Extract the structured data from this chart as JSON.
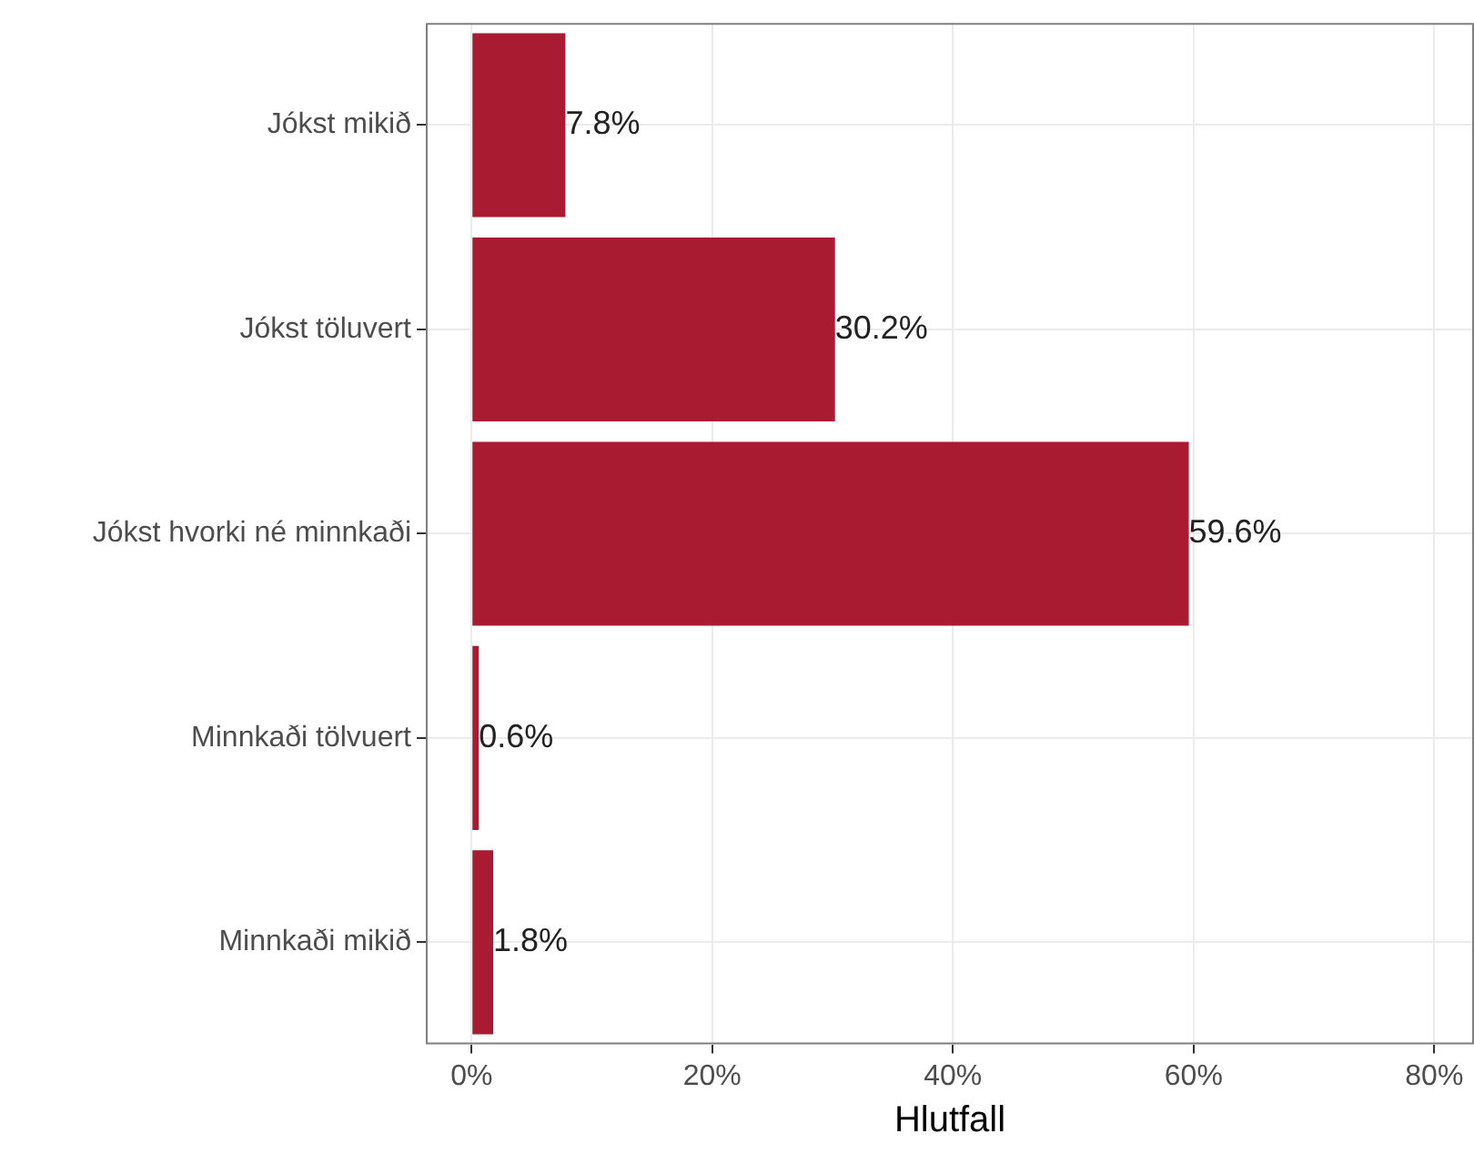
{
  "chart_data": {
    "type": "bar",
    "orientation": "horizontal",
    "xlabel": "Hlutfall",
    "categories": [
      "Jókst mikið",
      "Jókst töluvert",
      "Jókst hvorki né minnkaði",
      "Minnkaði tölvuert",
      "Minnkaði mikið"
    ],
    "values": [
      7.8,
      30.2,
      59.6,
      0.6,
      1.8
    ],
    "value_labels": [
      "7.8%",
      "30.2%",
      "59.6%",
      "0.6%",
      "1.8%"
    ],
    "color": "#a91b30",
    "xlim": [
      -3.8,
      83.3
    ],
    "xticks": [
      {
        "value": 0,
        "label": "0%"
      },
      {
        "value": 20,
        "label": "20%"
      },
      {
        "value": 40,
        "label": "40%"
      },
      {
        "value": 60,
        "label": "60%"
      },
      {
        "value": 80,
        "label": "80%"
      }
    ],
    "grid": true,
    "legend": false
  }
}
